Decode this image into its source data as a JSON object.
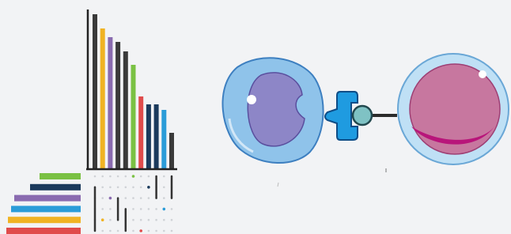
{
  "chart_data": {
    "type": "upset",
    "intersection_values": [
      195,
      177,
      166,
      160,
      148,
      131,
      91,
      81,
      81,
      74,
      45
    ],
    "intersection_colors": [
      "#3a3a3a",
      "#f0b323",
      "#8a6bb0",
      "#3a3a3a",
      "#3a3a3a",
      "#7ac143",
      "#e04b4b",
      "#1b3a5c",
      "#1b3a5c",
      "#2b9cd8",
      "#3a3a3a"
    ],
    "ylim": [
      0,
      200
    ],
    "set_values": [
      52,
      64,
      84,
      88,
      92,
      94
    ],
    "set_colors": [
      "#7ac143",
      "#1b3a5c",
      "#8a6bb0",
      "#2b9cd8",
      "#f0b323",
      "#e04b4b"
    ],
    "xlim": [
      0,
      100
    ]
  }
}
